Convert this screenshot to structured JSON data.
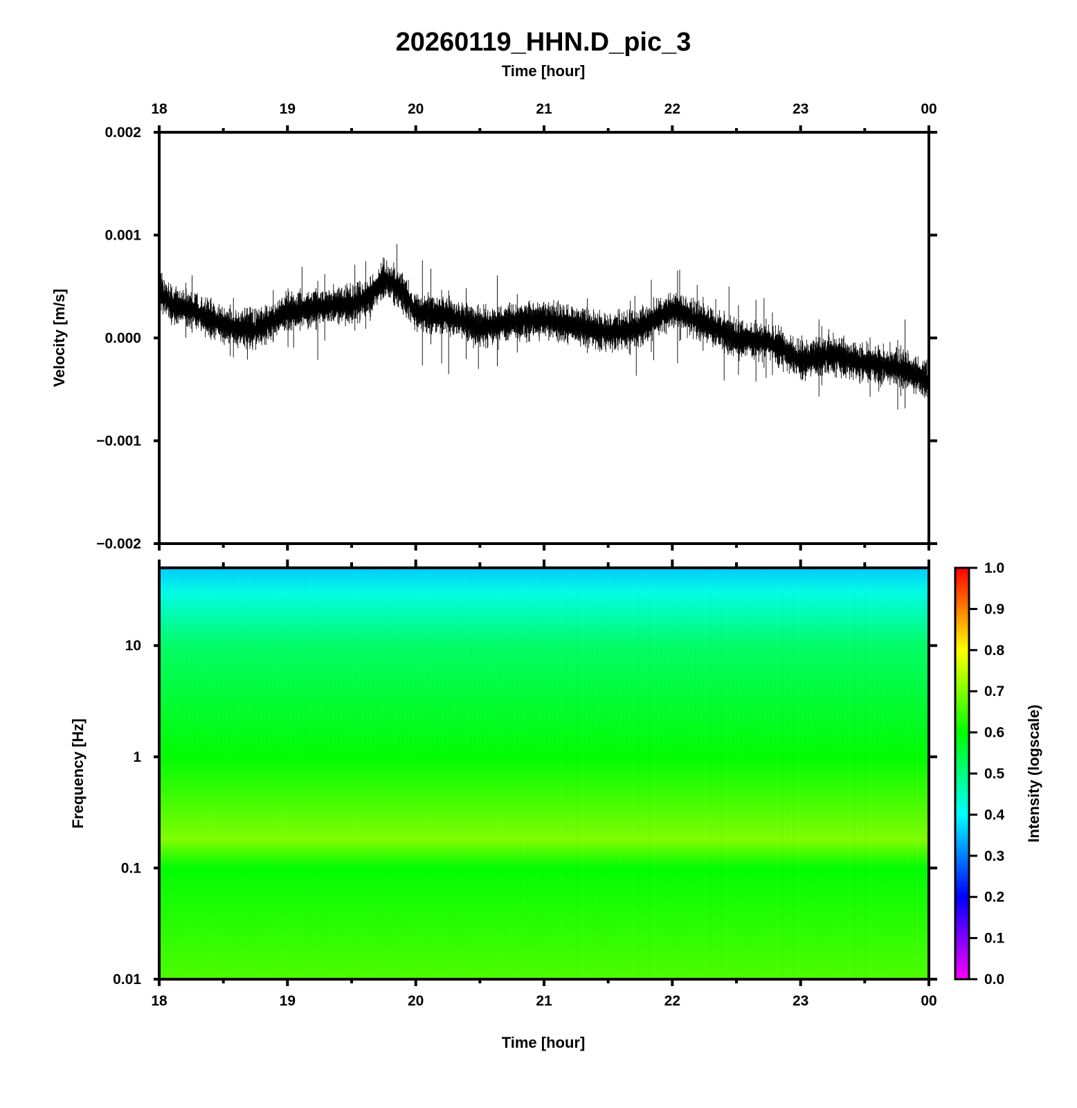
{
  "chart_data": [
    {
      "type": "line",
      "title": "20260119_HHN.D_pic_3",
      "top_xlabel": "Time [hour]",
      "ylabel": "Velocity [m/s]",
      "x_ticks": [
        "18",
        "19",
        "20",
        "21",
        "22",
        "23",
        "00"
      ],
      "x_range_hours": [
        18,
        24
      ],
      "y_ticks": [
        "0.002",
        "0.001",
        "0.000",
        "−0.001",
        "−0.002"
      ],
      "ylim": [
        -0.002,
        0.002
      ],
      "series": [
        {
          "color": "#000000",
          "x": [
            18.0,
            18.1,
            18.25,
            18.5,
            18.75,
            19.0,
            19.25,
            19.5,
            19.65,
            19.75,
            19.9,
            20.0,
            20.25,
            20.5,
            20.75,
            21.0,
            21.25,
            21.5,
            21.75,
            22.0,
            22.25,
            22.5,
            22.75,
            23.0,
            23.25,
            23.5,
            23.75,
            24.0
          ],
          "y": [
            0.00045,
            0.00032,
            0.00028,
            0.00012,
            8e-05,
            0.00025,
            0.0003,
            0.00033,
            0.0004,
            0.00058,
            0.00045,
            0.00025,
            0.00022,
            0.0001,
            0.00016,
            0.00018,
            0.00012,
            5e-05,
            0.0001,
            0.00028,
            0.00015,
            -1e-05,
            -3e-05,
            -0.00022,
            -0.00016,
            -0.00025,
            -0.00028,
            -0.00042
          ]
        }
      ]
    },
    {
      "type": "heatmap",
      "xlabel": "Time [hour]",
      "ylabel": "Frequency [Hz]",
      "x_ticks": [
        "18",
        "19",
        "20",
        "21",
        "22",
        "23",
        "00"
      ],
      "y_ticks": [
        "10",
        "1",
        "0.1",
        "0.01"
      ],
      "y_scale": "log",
      "ylim": [
        0.01,
        50
      ],
      "colorbar": {
        "label": "Intensity (logscale)",
        "ticks": [
          "1.0",
          "0.9",
          "0.8",
          "0.7",
          "0.6",
          "0.5",
          "0.4",
          "0.3",
          "0.2",
          "0.1",
          "0.0"
        ],
        "range": [
          0,
          1
        ],
        "colors": [
          "#ff00ff",
          "#8000ff",
          "#0000ff",
          "#0080ff",
          "#00ffff",
          "#00ff80",
          "#00ff00",
          "#80ff00",
          "#ffff00",
          "#ff8000",
          "#ff0000"
        ]
      },
      "intensity_by_frequency": [
        {
          "freq": 50,
          "intensity": 0.36
        },
        {
          "freq": 30,
          "intensity": 0.42
        },
        {
          "freq": 10,
          "intensity": 0.52
        },
        {
          "freq": 1,
          "intensity": 0.6
        },
        {
          "freq": 0.35,
          "intensity": 0.66
        },
        {
          "freq": 0.18,
          "intensity": 0.7
        },
        {
          "freq": 0.1,
          "intensity": 0.6
        },
        {
          "freq": 0.01,
          "intensity": 0.66
        }
      ]
    }
  ]
}
